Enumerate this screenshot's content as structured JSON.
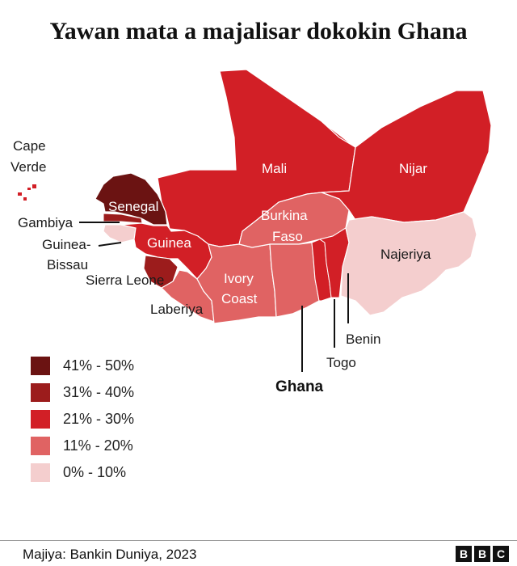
{
  "title": "Yawan mata a majalisar dokokin Ghana",
  "colors": {
    "c41_50": "#6b1312",
    "c31_40": "#9c1c1c",
    "c21_30": "#d21f26",
    "c11_20": "#e06363",
    "c0_10": "#f4cece"
  },
  "legend": [
    {
      "label": "41% - 50%",
      "color": "#6b1312"
    },
    {
      "label": "31% - 40%",
      "color": "#9c1c1c"
    },
    {
      "label": "21% - 30%",
      "color": "#d21f26"
    },
    {
      "label": "11% - 20%",
      "color": "#e06363"
    },
    {
      "label": "0% - 10%",
      "color": "#f4cece"
    }
  ],
  "countries": {
    "cape_verde_1": "Cape",
    "cape_verde_2": "Verde",
    "mali": "Mali",
    "nijar": "Nijar",
    "senegal": "Senegal",
    "gambiya": "Gambiya",
    "guinea_bissau_1": "Guinea-",
    "guinea_bissau_2": "Bissau",
    "guinea": "Guinea",
    "sierra_leone": "Sierra Leone",
    "laberiya": "Laberiya",
    "burkina_1": "Burkina",
    "burkina_2": "Faso",
    "ivory_1": "Ivory",
    "ivory_2": "Coast",
    "ghana": "Ghana",
    "togo": "Togo",
    "benin": "Benin",
    "najeriya": "Najeriya"
  },
  "footer": {
    "source": "Majiya: Bankin Duniya, 2023",
    "logo": [
      "B",
      "B",
      "C"
    ]
  }
}
